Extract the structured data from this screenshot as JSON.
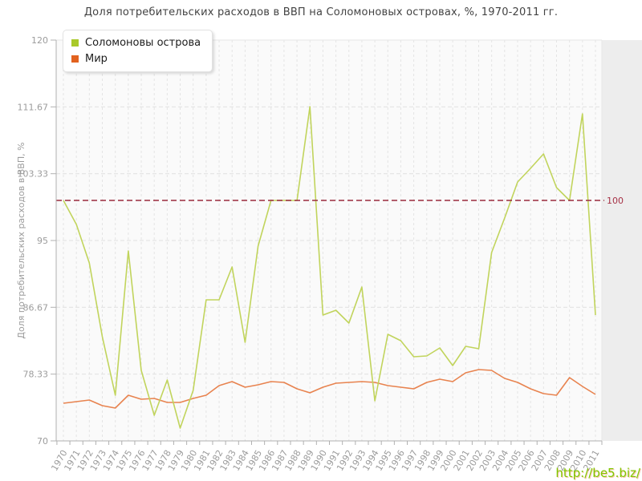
{
  "title": "Доля потребительских расходов в ВВП на Соломоновых островах, %, 1970-2011 гг.",
  "watermark": "http://be5.biz/",
  "y_axis": {
    "label": "Доля потребительских расходов в ВВП, %",
    "ticks": [
      "120",
      "111.67",
      "103.33",
      "95",
      "86.67",
      "78.33",
      "70"
    ],
    "min": 70,
    "max": 120
  },
  "reference_line": {
    "value": 100,
    "label": "100"
  },
  "colors": {
    "reference_line": "#9a2a3c",
    "reference_label": "#a63146",
    "grid_horizontal": "#e0e0e0",
    "grid_vertical": "#e4e4e4",
    "axis": "#b0b0b0",
    "frame": "#e6e6e6",
    "tick_text": "#9c9c9c",
    "plot_background": "#fafafa",
    "right_margin_strip": "#ededed"
  },
  "chart_data": {
    "type": "line",
    "title": "Доля потребительских расходов в ВВП на Соломоновых островах, %, 1970-2011 гг.",
    "ylabel": "Доля потребительских расходов в ВВП, %",
    "ylim": [
      70,
      120
    ],
    "grid": true,
    "legend_position": "top-left",
    "x": [
      1970,
      1971,
      1972,
      1973,
      1974,
      1975,
      1976,
      1977,
      1978,
      1979,
      1980,
      1981,
      1982,
      1983,
      1984,
      1985,
      1986,
      1987,
      1988,
      1989,
      1990,
      1991,
      1992,
      1993,
      1994,
      1995,
      1996,
      1997,
      1998,
      1999,
      2000,
      2001,
      2002,
      2003,
      2004,
      2005,
      2006,
      2007,
      2008,
      2009,
      2010,
      2011
    ],
    "series": [
      {
        "name": "Соломоновы острова",
        "color": "#a9c92a",
        "line_color": "#c1d45c",
        "values": [
          100.0,
          97.0,
          92.2,
          83.0,
          75.7,
          93.7,
          78.8,
          73.2,
          77.6,
          71.6,
          76.3,
          87.6,
          87.6,
          91.7,
          82.3,
          94.3,
          100.0,
          100.0,
          100.0,
          111.7,
          85.7,
          86.3,
          84.7,
          89.2,
          75.0,
          83.3,
          82.5,
          80.5,
          80.6,
          81.6,
          79.4,
          81.8,
          81.5,
          93.5,
          97.8,
          102.3,
          104.0,
          105.8,
          101.6,
          100.0,
          110.8,
          85.7
        ]
      },
      {
        "name": "Мир",
        "color": "#e2621f",
        "line_color": "#e8834f",
        "values": [
          74.7,
          74.9,
          75.1,
          74.4,
          74.1,
          75.7,
          75.2,
          75.3,
          74.8,
          74.8,
          75.3,
          75.7,
          76.9,
          77.4,
          76.7,
          77.0,
          77.4,
          77.3,
          76.5,
          76.0,
          76.7,
          77.2,
          77.3,
          77.4,
          77.3,
          76.9,
          76.7,
          76.5,
          77.3,
          77.7,
          77.4,
          78.5,
          78.9,
          78.8,
          77.8,
          77.3,
          76.5,
          75.9,
          75.7,
          77.9,
          76.8,
          75.8
        ]
      }
    ]
  }
}
